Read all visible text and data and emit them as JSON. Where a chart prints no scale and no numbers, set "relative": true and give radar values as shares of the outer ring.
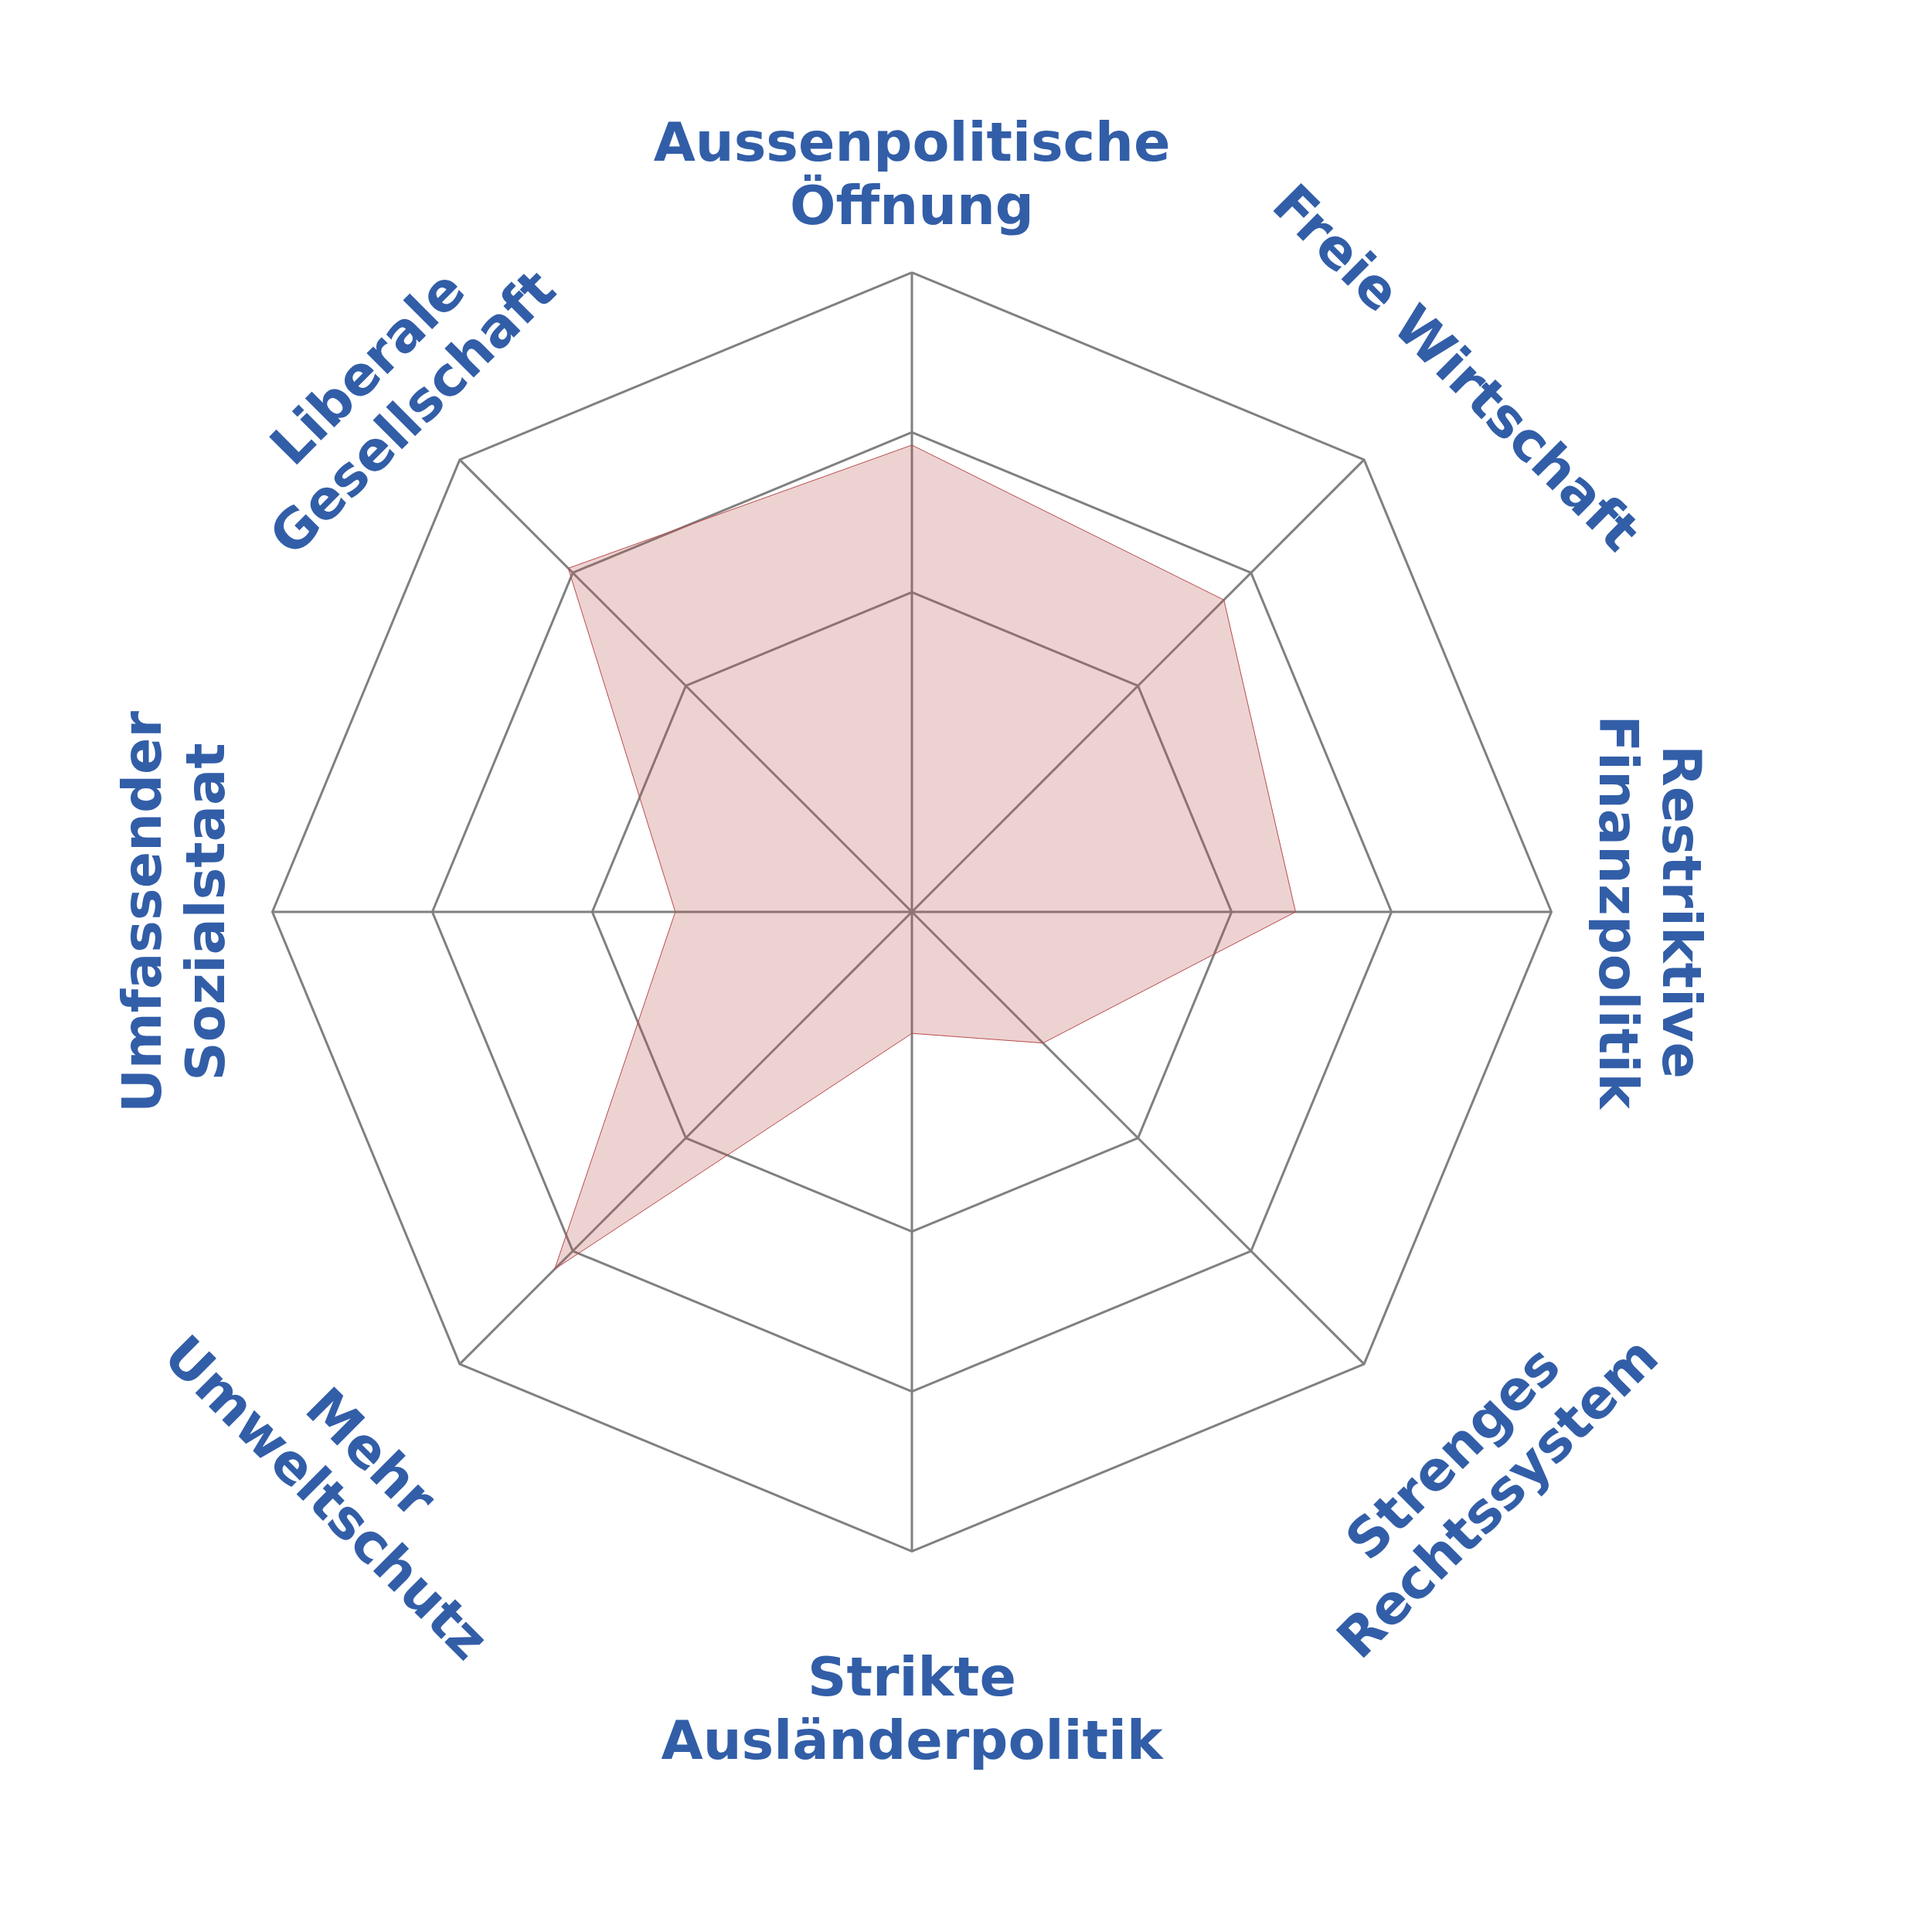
{
  "chart_data": {
    "type": "radar",
    "relative": true,
    "grid": true,
    "categories": [
      "Aussenpolitische\nÖffnung",
      "Freie Wirtschaft",
      "Restriktive\nFinanzpolitik",
      "Strenges\nRechtssystem",
      "Strikte\nAusländerpolitik",
      "Mehr\nUmweltschutz",
      "Umfassender\nSozialstaat",
      "Liberale\nGesellschaft"
    ],
    "series": [
      {
        "color": "#b84a4a",
        "values": [
          0.73,
          0.69,
          0.6,
          0.29,
          0.19,
          0.79,
          0.37,
          0.76
        ]
      }
    ]
  }
}
